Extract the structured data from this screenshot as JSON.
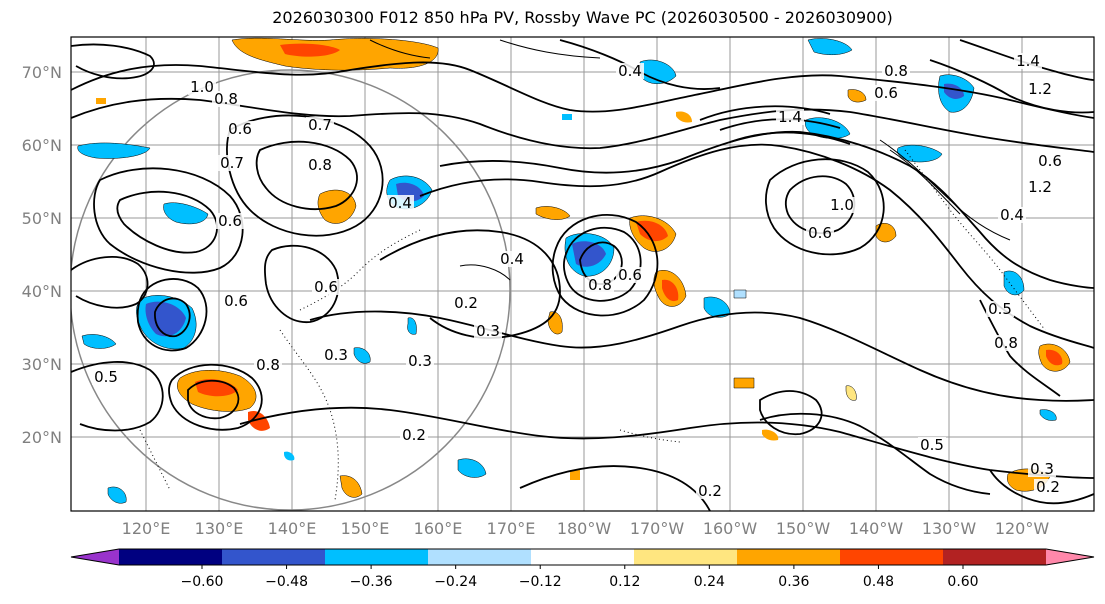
{
  "title": "2026030300 F012 850 hPa PV, Rossby Wave PC (2026030500 - 2026030900)",
  "lat_labels": [
    "70°N",
    "60°N",
    "50°N",
    "40°N",
    "30°N",
    "20°N"
  ],
  "lon_labels": [
    "120°E",
    "130°E",
    "140°E",
    "150°E",
    "160°E",
    "170°E",
    "180°W",
    "170°W",
    "160°W",
    "150°W",
    "140°W",
    "130°W",
    "120°W"
  ],
  "colorbar": {
    "ticks": [
      "−0.60",
      "−0.48",
      "−0.36",
      "−0.24",
      "−0.12",
      "0.12",
      "0.24",
      "0.36",
      "0.48",
      "0.60"
    ],
    "colors": [
      "#9933cc",
      "#000080",
      "#3355cc",
      "#00bfff",
      "#b0e0ff",
      "#ffffff",
      "#ffe680",
      "#ffa500",
      "#ff4500",
      "#b22222",
      "#ff88aa"
    ]
  },
  "contour_labels": [
    {
      "text": "1.0"
    },
    {
      "text": "0.8"
    },
    {
      "text": "0.6"
    },
    {
      "text": "0.7"
    },
    {
      "text": "0.8"
    },
    {
      "text": "0.6"
    },
    {
      "text": "0.7"
    },
    {
      "text": "0.6"
    },
    {
      "text": "0.4"
    },
    {
      "text": "0.4"
    },
    {
      "text": "0.2"
    },
    {
      "text": "0.3"
    },
    {
      "text": "0.3"
    },
    {
      "text": "0.2"
    },
    {
      "text": "0.5"
    },
    {
      "text": "0.2"
    },
    {
      "text": "0.4"
    },
    {
      "text": "0.8"
    },
    {
      "text": "0.6"
    },
    {
      "text": "1.0"
    },
    {
      "text": "0.6"
    },
    {
      "text": "1.4"
    },
    {
      "text": "1.2"
    },
    {
      "text": "0.4"
    },
    {
      "text": "1.4"
    },
    {
      "text": "1.2"
    },
    {
      "text": "0.6"
    },
    {
      "text": "0.8"
    },
    {
      "text": "0.6"
    },
    {
      "text": "0.4"
    },
    {
      "text": "0.8"
    },
    {
      "text": "0.5"
    },
    {
      "text": "0.3"
    },
    {
      "text": "0.2"
    },
    {
      "text": "0.8"
    },
    {
      "text": "0.6"
    },
    {
      "text": "0.3"
    },
    {
      "text": "0.5"
    }
  ]
}
